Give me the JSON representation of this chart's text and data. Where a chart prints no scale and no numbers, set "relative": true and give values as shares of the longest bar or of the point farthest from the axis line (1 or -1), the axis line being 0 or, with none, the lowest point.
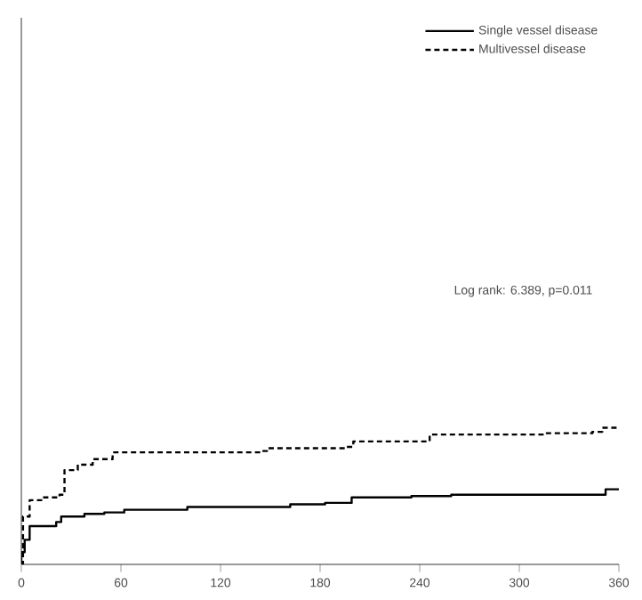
{
  "chart_data": {
    "type": "step",
    "relative": true,
    "xlim": [
      0,
      360
    ],
    "xticks": [
      0,
      60,
      120,
      180,
      240,
      300,
      360
    ],
    "legend": "top right",
    "annotations": [
      "Log rank: 6.389, p=0.011"
    ],
    "series": [
      {
        "name": "Single vessel disease",
        "color": "#000000",
        "line_style": "solid",
        "x": [
          0,
          0,
          2,
          5,
          21,
          24,
          38,
          50,
          62,
          100,
          162,
          183,
          199,
          235,
          259,
          346,
          352,
          360
        ],
        "values": [
          0,
          0.09,
          0.18,
          0.28,
          0.31,
          0.35,
          0.37,
          0.38,
          0.4,
          0.42,
          0.44,
          0.45,
          0.49,
          0.5,
          0.51,
          0.51,
          0.55,
          0.55
        ]
      },
      {
        "name": "Multivessel disease",
        "color": "#000000",
        "line_style": "dashed",
        "x": [
          0,
          1,
          5,
          13,
          23,
          26,
          34,
          43,
          55,
          145,
          148,
          196,
          200,
          238,
          246,
          310,
          315,
          344,
          350,
          360
        ],
        "values": [
          0,
          0.35,
          0.47,
          0.49,
          0.51,
          0.69,
          0.73,
          0.77,
          0.82,
          0.83,
          0.85,
          0.86,
          0.9,
          0.9,
          0.95,
          0.95,
          0.96,
          0.97,
          1,
          0.99
        ]
      }
    ]
  }
}
